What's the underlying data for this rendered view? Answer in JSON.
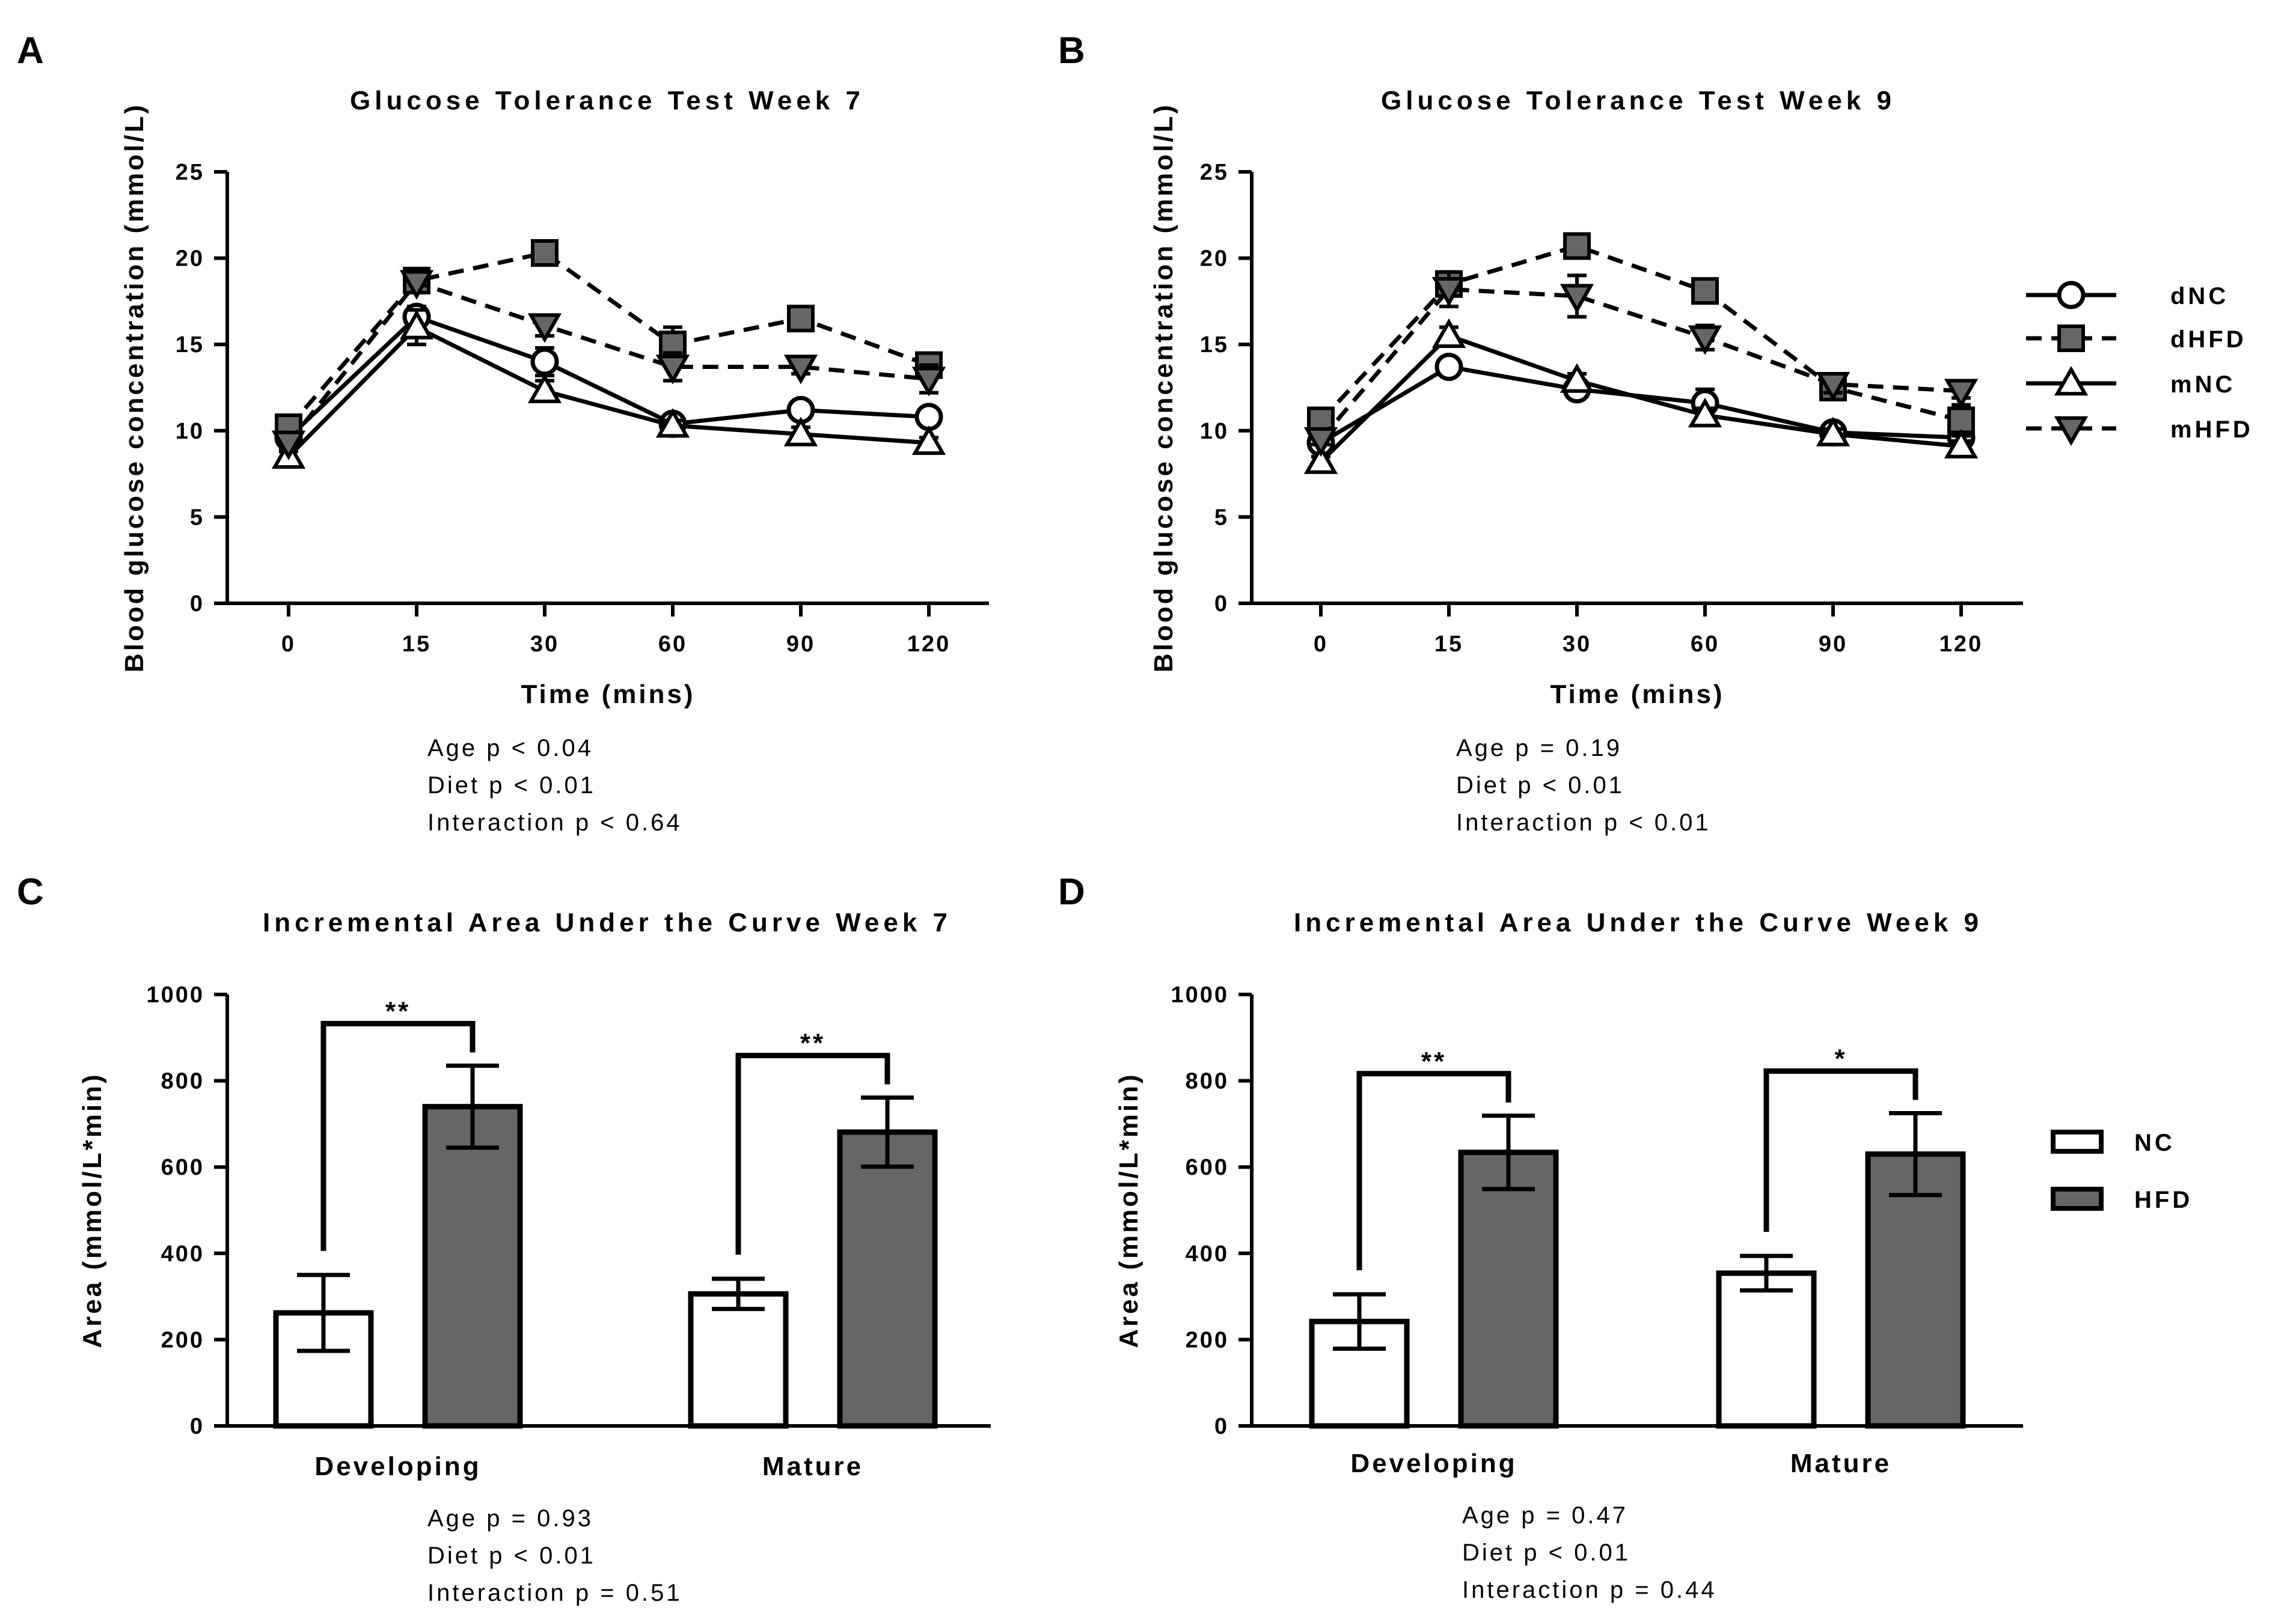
{
  "chart_data": [
    {
      "panel": "A",
      "type": "line",
      "title": "Glucose Tolerance Test Week 7",
      "xlabel": "Time (mins)",
      "ylabel": "Blood glucose concentration (mmol/L)",
      "categories": [
        "0",
        "15",
        "30",
        "60",
        "90",
        "120"
      ],
      "ylim": [
        0,
        25
      ],
      "yticks": [
        0,
        5,
        10,
        15,
        20,
        25
      ],
      "series": [
        {
          "name": "dNC",
          "marker": "circle",
          "dashed": false,
          "values": [
            9.6,
            16.6,
            14.0,
            10.4,
            11.2,
            10.8
          ],
          "errors": [
            0.4,
            0.6,
            0.8,
            0.3,
            0.3,
            0.4
          ]
        },
        {
          "name": "dHFD",
          "marker": "square",
          "dashed": true,
          "values": [
            10.2,
            18.7,
            20.3,
            15.0,
            16.5,
            13.8
          ],
          "errors": [
            0.3,
            0.4,
            0.3,
            1.0,
            0.6,
            0.6
          ]
        },
        {
          "name": "mNC",
          "marker": "triangle-up",
          "dashed": false,
          "values": [
            8.5,
            16.0,
            12.3,
            10.3,
            9.8,
            9.3
          ],
          "errors": [
            0.3,
            1.0,
            0.6,
            0.3,
            0.4,
            0.3
          ]
        },
        {
          "name": "mHFD",
          "marker": "triangle-down",
          "dashed": true,
          "values": [
            9.3,
            18.6,
            16.1,
            13.7,
            13.7,
            13.0
          ],
          "errors": [
            0.3,
            0.6,
            0.6,
            0.8,
            0.4,
            0.8
          ]
        }
      ],
      "stats": [
        "Age p < 0.04",
        "Diet p < 0.01",
        "Interaction p < 0.64"
      ]
    },
    {
      "panel": "B",
      "type": "line",
      "title": "Glucose Tolerance Test Week 9",
      "xlabel": "Time (mins)",
      "ylabel": "Blood glucose concentration (mmol/L)",
      "categories": [
        "0",
        "15",
        "30",
        "60",
        "90",
        "120"
      ],
      "ylim": [
        0,
        25
      ],
      "yticks": [
        0,
        5,
        10,
        15,
        20,
        25
      ],
      "legend": [
        "dNC",
        "dHFD",
        "mNC",
        "mHFD"
      ],
      "series": [
        {
          "name": "dNC",
          "marker": "circle",
          "dashed": false,
          "values": [
            9.3,
            13.7,
            12.4,
            11.6,
            9.9,
            9.6
          ],
          "errors": [
            0.3,
            0.4,
            0.4,
            0.8,
            0.3,
            0.4
          ]
        },
        {
          "name": "dHFD",
          "marker": "square",
          "dashed": true,
          "values": [
            10.6,
            18.5,
            20.7,
            18.1,
            12.5,
            10.6
          ],
          "errors": [
            0.3,
            0.5,
            0.4,
            0.4,
            0.5,
            0.9
          ]
        },
        {
          "name": "mNC",
          "marker": "triangle-up",
          "dashed": false,
          "values": [
            8.2,
            15.5,
            12.9,
            10.9,
            9.8,
            9.1
          ],
          "errors": [
            0.3,
            0.5,
            0.4,
            0.4,
            0.3,
            0.3
          ]
        },
        {
          "name": "mHFD",
          "marker": "triangle-down",
          "dashed": true,
          "values": [
            9.5,
            18.2,
            17.8,
            15.4,
            12.7,
            12.3
          ],
          "errors": [
            0.3,
            1.0,
            1.2,
            0.7,
            0.5,
            0.4
          ]
        }
      ],
      "stats": [
        "Age p = 0.19",
        "Diet p < 0.01",
        "Interaction p < 0.01"
      ]
    },
    {
      "panel": "C",
      "type": "bar",
      "title": "Incremental Area Under the Curve Week 7",
      "xlabel": "",
      "ylabel": "Area (mmol/L*min)",
      "categories": [
        "Developing",
        "Mature"
      ],
      "ylim": [
        0,
        1000
      ],
      "yticks": [
        0,
        200,
        400,
        600,
        800,
        1000
      ],
      "series": [
        {
          "name": "NC",
          "fill": "#ffffff",
          "values": [
            262,
            306
          ],
          "errors": [
            88,
            35
          ]
        },
        {
          "name": "HFD",
          "fill": "#666666",
          "values": [
            740,
            681
          ],
          "errors": [
            95,
            80
          ]
        }
      ],
      "significance": [
        "**",
        "**"
      ],
      "stats": [
        "Age p = 0.93",
        "Diet p < 0.01",
        "Interaction p = 0.51"
      ]
    },
    {
      "panel": "D",
      "type": "bar",
      "title": "Incremental Area Under the Curve Week 9",
      "xlabel": "",
      "ylabel": "Area (mmol/L*min)",
      "categories": [
        "Developing",
        "Mature"
      ],
      "ylim": [
        0,
        1000
      ],
      "yticks": [
        0,
        200,
        400,
        600,
        800,
        1000
      ],
      "legend": [
        "NC",
        "HFD"
      ],
      "series": [
        {
          "name": "NC",
          "fill": "#ffffff",
          "values": [
            242,
            354
          ],
          "errors": [
            63,
            40
          ]
        },
        {
          "name": "HFD",
          "fill": "#666666",
          "values": [
            634,
            630
          ],
          "errors": [
            85,
            95
          ]
        }
      ],
      "significance": [
        "**",
        "*"
      ],
      "stats": [
        "Age p = 0.47",
        "Diet p < 0.01",
        "Interaction p = 0.44"
      ]
    }
  ]
}
